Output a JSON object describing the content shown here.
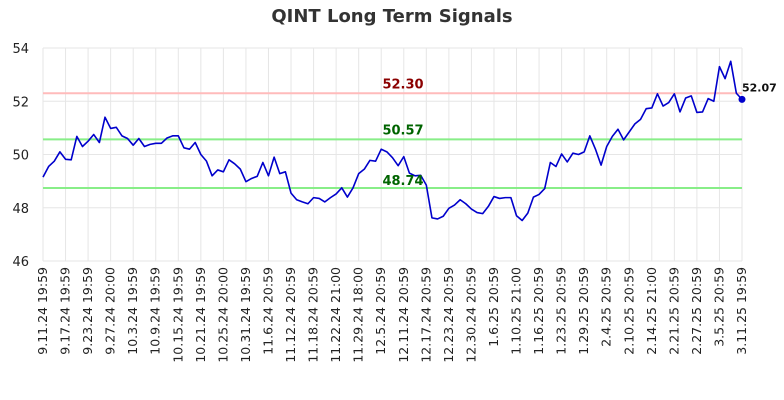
{
  "chart_data": {
    "type": "line",
    "title": "QINT Long Term Signals",
    "ylim": [
      46,
      54
    ],
    "yticks": [
      "46",
      "48",
      "50",
      "52",
      "54"
    ],
    "grid": true,
    "series_color": "#0000cc",
    "x_labels": [
      "9.11.24 19:59",
      "9.17.24 19:59",
      "9.23.24 19:59",
      "9.27.24 20:00",
      "10.3.24 19:59",
      "10.9.24 19:59",
      "10.15.24 19:59",
      "10.21.24 19:59",
      "10.25.24 20:00",
      "10.31.24 19:59",
      "11.6.24 20:59",
      "11.12.24 20:59",
      "11.18.24 20:59",
      "11.22.24 21:00",
      "11.29.24 18:00",
      "12.5.24 20:59",
      "12.11.24 20:59",
      "12.17.24 20:59",
      "12.23.24 20:59",
      "12.30.24 20:59",
      "1.6.25 20:59",
      "1.10.25 21:00",
      "1.16.25 20:59",
      "1.23.25 20:59",
      "1.29.25 20:59",
      "2.4.25 20:59",
      "2.10.25 20:59",
      "2.14.25 21:00",
      "2.21.25 20:59",
      "2.27.25 20:59",
      "3.5.25 20:59",
      "3.11.25 19:59"
    ],
    "values": [
      49.15,
      49.55,
      49.75,
      50.1,
      49.82,
      49.8,
      50.68,
      50.3,
      50.5,
      50.75,
      50.45,
      51.4,
      50.98,
      51.02,
      50.7,
      50.6,
      50.35,
      50.6,
      50.3,
      50.38,
      50.42,
      50.42,
      50.62,
      50.7,
      50.7,
      50.25,
      50.2,
      50.45,
      50.0,
      49.75,
      49.2,
      49.42,
      49.35,
      49.8,
      49.65,
      49.45,
      48.98,
      49.1,
      49.18,
      49.7,
      49.2,
      49.9,
      49.28,
      49.35,
      48.55,
      48.3,
      48.22,
      48.15,
      48.38,
      48.35,
      48.22,
      48.38,
      48.52,
      48.75,
      48.4,
      48.75,
      49.28,
      49.45,
      49.78,
      49.75,
      50.2,
      50.1,
      49.88,
      49.58,
      49.92,
      49.3,
      49.2,
      49.22,
      48.85,
      47.62,
      47.58,
      47.68,
      47.98,
      48.1,
      48.3,
      48.15,
      47.95,
      47.82,
      47.78,
      48.05,
      48.42,
      48.35,
      48.38,
      48.38,
      47.7,
      47.52,
      47.8,
      48.4,
      48.5,
      48.72,
      49.7,
      49.55,
      50.02,
      49.72,
      50.05,
      50.0,
      50.1,
      50.7,
      50.2,
      49.6,
      50.3,
      50.68,
      50.95,
      50.55,
      50.85,
      51.15,
      51.32,
      51.72,
      51.75,
      52.28,
      51.82,
      51.95,
      52.28,
      51.6,
      52.12,
      52.2,
      51.58,
      51.6,
      52.1,
      52.0,
      53.3,
      52.85,
      53.5,
      52.3,
      52.07
    ],
    "last_value_label": "52.07",
    "reference_lines": [
      {
        "label": "52.30",
        "value": 52.3,
        "line_color": "#ffbbbb",
        "text_color": "#8b0000"
      },
      {
        "label": "50.57",
        "value": 50.57,
        "line_color": "#88ee88",
        "text_color": "#006400"
      },
      {
        "label": "48.74",
        "value": 48.74,
        "line_color": "#88ee88",
        "text_color": "#006400"
      }
    ]
  }
}
